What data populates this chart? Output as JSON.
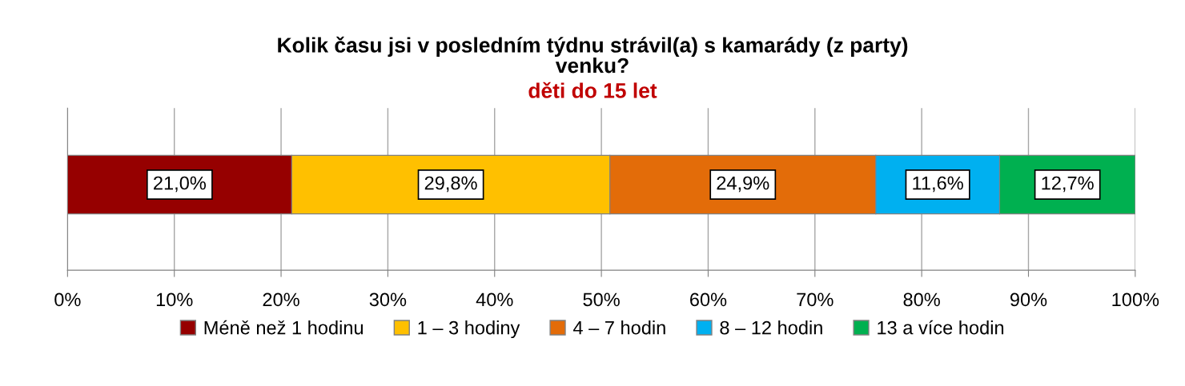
{
  "chart_data": {
    "type": "bar",
    "orientation": "horizontal",
    "stacked": true,
    "title": "Kolik času jsi v posledním týdnu strávil(a) s kamarády (z party)\nvenku?",
    "subtitle": "děti do 15 let",
    "categories": [
      null
    ],
    "series": [
      {
        "name": "Méně než 1 hodinu",
        "color": "#960000",
        "values": [
          21.0
        ],
        "value_labels": [
          "21,0%"
        ]
      },
      {
        "name": "1 – 3 hodiny",
        "color": "#ffc000",
        "values": [
          29.8
        ],
        "value_labels": [
          "29,8%"
        ]
      },
      {
        "name": "4 – 7 hodin",
        "color": "#e36c09",
        "values": [
          24.9
        ],
        "value_labels": [
          "24,9%"
        ]
      },
      {
        "name": "8 – 12 hodin",
        "color": "#00b0f0",
        "values": [
          11.6
        ],
        "value_labels": [
          "11,6%"
        ]
      },
      {
        "name": "13 a více hodin",
        "color": "#00b050",
        "values": [
          12.7
        ],
        "value_labels": [
          "12,7%"
        ]
      }
    ],
    "xlim": [
      0,
      100
    ],
    "xticks": [
      {
        "value": 0,
        "label": "0%"
      },
      {
        "value": 10,
        "label": "10%"
      },
      {
        "value": 20,
        "label": "20%"
      },
      {
        "value": 30,
        "label": "30%"
      },
      {
        "value": 40,
        "label": "40%"
      },
      {
        "value": 50,
        "label": "50%"
      },
      {
        "value": 60,
        "label": "60%"
      },
      {
        "value": 70,
        "label": "70%"
      },
      {
        "value": 80,
        "label": "80%"
      },
      {
        "value": 90,
        "label": "90%"
      },
      {
        "value": 100,
        "label": "100%"
      }
    ],
    "grid": "x",
    "legend": "bottom"
  }
}
